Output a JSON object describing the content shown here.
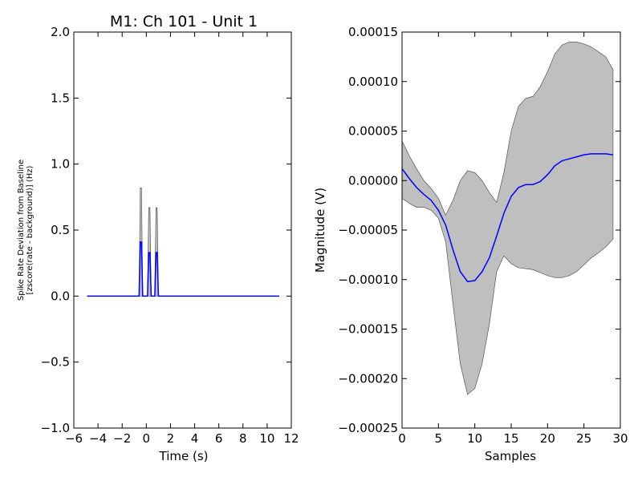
{
  "chart_data": [
    {
      "type": "line",
      "title": "M1: Ch 101 - Unit 1",
      "xlabel": "Time (s)",
      "ylabel_line1": "Spike Rate Deviation from Baseline",
      "ylabel_line2": "[zscore(rate - background)] (Hz)",
      "xlim": [
        -6,
        12
      ],
      "ylim": [
        -1.0,
        2.0
      ],
      "xticks": [
        -6,
        -4,
        -2,
        0,
        2,
        4,
        6,
        8,
        10,
        12
      ],
      "xtick_labels": [
        "−6",
        "−4",
        "−2",
        "0",
        "2",
        "4",
        "6",
        "8",
        "10",
        "12"
      ],
      "yticks": [
        -1.0,
        -0.5,
        0.0,
        0.5,
        1.0,
        1.5,
        2.0
      ],
      "ytick_labels": [
        "−1.0",
        "−0.5",
        "0.0",
        "0.5",
        "1.0",
        "1.5",
        "2.0"
      ],
      "grid": false,
      "series": [
        {
          "color": "#0000ff",
          "x": [
            -4.9,
            -0.7,
            -0.6,
            -0.5,
            -0.4,
            -0.3,
            -0.2,
            -0.1,
            0.0,
            0.1,
            0.2,
            0.3,
            0.4,
            0.5,
            0.6,
            0.7,
            0.8,
            0.9,
            1.0,
            11.0
          ],
          "y": [
            0,
            0,
            0,
            0.41,
            0.41,
            0,
            0,
            0,
            0,
            0,
            0.33,
            0.33,
            0,
            0,
            0,
            0,
            0.33,
            0.33,
            0,
            0
          ],
          "band_lower": [
            0,
            0,
            0,
            0,
            0,
            0,
            0,
            0,
            0,
            0,
            0,
            0,
            0,
            0,
            0,
            0,
            0,
            0,
            0,
            0
          ],
          "band_upper": [
            0,
            0,
            0,
            0.82,
            0.82,
            0,
            0,
            0,
            0,
            0,
            0.67,
            0.67,
            0,
            0,
            0,
            0,
            0.67,
            0.67,
            0,
            0
          ]
        }
      ]
    },
    {
      "type": "line",
      "title": "",
      "xlabel": "Samples",
      "ylabel": "Magnitude (V)",
      "xlim": [
        0,
        30
      ],
      "ylim": [
        -0.00025,
        0.00015
      ],
      "xticks": [
        0,
        5,
        10,
        15,
        20,
        25,
        30
      ],
      "xtick_labels": [
        "0",
        "5",
        "10",
        "15",
        "20",
        "25",
        "30"
      ],
      "yticks": [
        -0.00025,
        -0.0002,
        -0.00015,
        -0.0001,
        -5e-05,
        0.0,
        5e-05,
        0.0001,
        0.00015
      ],
      "ytick_labels": [
        "−0.00025",
        "−0.00020",
        "−0.00015",
        "−0.00010",
        "−0.00005",
        "0.00000",
        "0.00005",
        "0.00010",
        "0.00015"
      ],
      "grid": false,
      "band_color": "#bfbfbf",
      "series": [
        {
          "color": "#0000ff",
          "x": [
            0,
            1,
            2,
            3,
            4,
            5,
            6,
            7,
            8,
            9,
            10,
            11,
            12,
            13,
            14,
            15,
            16,
            17,
            18,
            19,
            20,
            21,
            22,
            23,
            24,
            25,
            26,
            27,
            28,
            29
          ],
          "y": [
            1.2e-05,
            2e-06,
            -7e-06,
            -1.4e-05,
            -2e-05,
            -3e-05,
            -4.5e-05,
            -7e-05,
            -9.2e-05,
            -0.000102,
            -0.000101,
            -9.2e-05,
            -7.8e-05,
            -5.6e-05,
            -3.3e-05,
            -1.6e-05,
            -7e-06,
            -4e-06,
            -4e-06,
            -1e-06,
            6e-06,
            1.5e-05,
            2e-05,
            2.2e-05,
            2.4e-05,
            2.6e-05,
            2.7e-05,
            2.7e-05,
            2.7e-05,
            2.6e-05
          ],
          "band_upper": [
            4e-05,
            2.5e-05,
            1.2e-05,
            0.0,
            -8e-06,
            -1.8e-05,
            -3.5e-05,
            -2e-05,
            0.0,
            1e-05,
            8e-06,
            0.0,
            -1.2e-05,
            -2.2e-05,
            8e-06,
            5e-05,
            7.5e-05,
            8.3e-05,
            8.5e-05,
            9.5e-05,
            0.00011,
            0.000128,
            0.000137,
            0.00014,
            0.00014,
            0.000138,
            0.000135,
            0.00013,
            0.000125,
            0.000112
          ],
          "band_lower": [
            -1.8e-05,
            -2.3e-05,
            -2.7e-05,
            -2.7e-05,
            -3e-05,
            -3.8e-05,
            -6.2e-05,
            -0.000125,
            -0.000185,
            -0.000216,
            -0.00021,
            -0.000185,
            -0.000145,
            -9.2e-05,
            -7.6e-05,
            -8.4e-05,
            -8.8e-05,
            -8.9e-05,
            -9e-05,
            -9.3e-05,
            -9.6e-05,
            -9.8e-05,
            -9.8e-05,
            -9.6e-05,
            -9.2e-05,
            -8.5e-05,
            -7.8e-05,
            -7.3e-05,
            -6.7e-05,
            -5.9e-05
          ]
        }
      ]
    }
  ]
}
